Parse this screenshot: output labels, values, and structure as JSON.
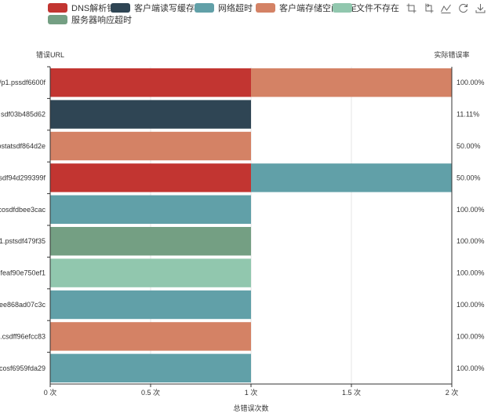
{
  "legend": [
    {
      "name": "DNS解析错误",
      "color": "#c23531"
    },
    {
      "name": "客户端读写缓存错误",
      "color": "#2f4554"
    },
    {
      "name": "网络超时",
      "color": "#61a0a8"
    },
    {
      "name": "客户端存储空间不足",
      "color": "#d48265"
    },
    {
      "name": "文件不存在",
      "color": "#91c7ae"
    },
    {
      "name": "服务器响应超时",
      "color": "#749f83"
    }
  ],
  "toolbox": [
    {
      "name": "zoom-icon"
    },
    {
      "name": "zoom-reset-icon"
    },
    {
      "name": "line-chart-icon"
    },
    {
      "name": "restore-icon"
    },
    {
      "name": "download-icon"
    }
  ],
  "chart_data": {
    "type": "bar",
    "orientation": "horizontal",
    "stacked": true,
    "y_axis_name": "错误URL",
    "y2_axis_name": "实际错误率",
    "x_axis_name": "总错误次数",
    "x_tick_labels": [
      "0 次",
      "0.5 次",
      "1 次",
      "1.5 次",
      "2 次"
    ],
    "xlim": [
      0,
      2
    ],
    "categories": [
      "/p1.pssdf6600f",
      "sdf03b485d62",
      "ostatsdf864d2e",
      "sdf94d299399f",
      "cosdfdbee3cac",
      "1.pstsdf479f35",
      "feaf90e750ef1",
      "ee868ad07c3c",
      ".csdff96efcc83",
      "cosf6959fda29"
    ],
    "right_labels": [
      "100.00%",
      "11.11%",
      "50.00%",
      "50.00%",
      "100.00%",
      "100.00%",
      "100.00%",
      "100.00%",
      "100.00%",
      "100.00%"
    ],
    "series": [
      {
        "name": "DNS解析错误",
        "values": [
          1,
          0,
          0,
          1,
          0,
          0,
          0,
          0,
          0,
          0
        ]
      },
      {
        "name": "客户端读写缓存错误",
        "values": [
          0,
          1,
          0,
          0,
          0,
          0,
          0,
          0,
          0,
          0
        ]
      },
      {
        "name": "网络超时",
        "values": [
          0,
          0,
          0,
          1,
          1,
          0,
          0,
          1,
          0,
          1
        ]
      },
      {
        "name": "客户端存储空间不足",
        "values": [
          1,
          0,
          1,
          0,
          0,
          0,
          0,
          0,
          1,
          0
        ]
      },
      {
        "name": "文件不存在",
        "values": [
          0,
          0,
          0,
          0,
          0,
          0,
          1,
          0,
          0,
          0
        ]
      },
      {
        "name": "服务器响应超时",
        "values": [
          0,
          0,
          0,
          0,
          0,
          1,
          0,
          0,
          0,
          0
        ]
      }
    ],
    "grid": true,
    "legend_position": "top-left"
  }
}
